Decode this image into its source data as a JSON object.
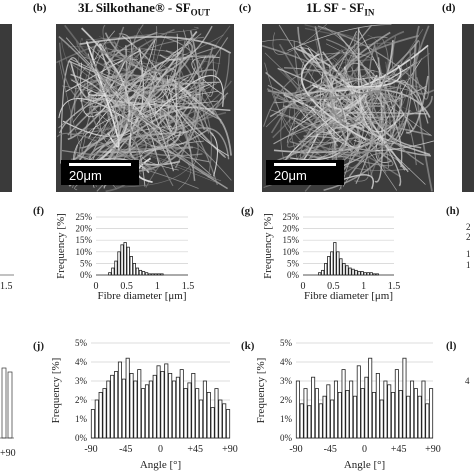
{
  "panels": {
    "b": {
      "letter": "(b)",
      "title_main": "3L Silkothane® - SF",
      "title_sub": "OUT",
      "scale": "20μm"
    },
    "c": {
      "letter": "(c)",
      "title_main": "1L SF - SF",
      "title_sub": "IN",
      "scale": "20μm"
    },
    "f": {
      "letter": "(f)"
    },
    "g": {
      "letter": "(g)"
    },
    "h": {
      "letter": "(h)"
    },
    "j": {
      "letter": "(j)"
    },
    "k": {
      "letter": "(k)"
    },
    "l": {
      "letter": "(l)"
    }
  },
  "left_edge_labels": {
    "diam_tick": "1.5",
    "angle_tick": "+90"
  },
  "chart_data": [
    {
      "id": "f",
      "type": "bar",
      "xlabel": "Fibre diameter [μm]",
      "ylabel": "Frequency [%]",
      "xlim": [
        0,
        1.5
      ],
      "ylim": [
        0,
        25
      ],
      "xticks": [
        "0",
        "0.5",
        "1",
        "1.5"
      ],
      "yticks": [
        "0%",
        "5%",
        "10%",
        "15%",
        "20%",
        "25%"
      ],
      "bin_start": 0.2,
      "bin_width": 0.05,
      "values": [
        1,
        3,
        6,
        10,
        13,
        14,
        12,
        8,
        5,
        3,
        2,
        1.5,
        1,
        0.5,
        0.5,
        0.5,
        0.5,
        0.5
      ]
    },
    {
      "id": "g",
      "type": "bar",
      "xlabel": "Fibre diameter [μm]",
      "ylabel": "Frequency [%]",
      "xlim": [
        0,
        1.5
      ],
      "ylim": [
        0,
        25
      ],
      "xticks": [
        "0",
        "0.5",
        "1",
        "1.5"
      ],
      "yticks": [
        "0%",
        "5%",
        "10%",
        "15%",
        "20%",
        "25%"
      ],
      "bin_start": 0.25,
      "bin_width": 0.05,
      "values": [
        1,
        2,
        5,
        8,
        10,
        14,
        10,
        7,
        5,
        4,
        3,
        2.5,
        2,
        1.5,
        1.5,
        1,
        1,
        1,
        0.5,
        0.5
      ]
    },
    {
      "id": "j",
      "type": "bar",
      "xlabel": "Angle [°]",
      "ylabel": "Frequency [%]",
      "xlim": [
        -90,
        90
      ],
      "ylim": [
        0,
        5
      ],
      "xticks": [
        "-90",
        "-45",
        "0",
        "+45",
        "+90"
      ],
      "yticks": [
        "0%",
        "1%",
        "2%",
        "3%",
        "4%",
        "5%"
      ],
      "bin_start": -90,
      "bin_width": 5,
      "values": [
        1.5,
        2.0,
        2.4,
        2.6,
        3.0,
        3.3,
        3.5,
        4.0,
        3.1,
        4.2,
        3.4,
        3.0,
        3.6,
        2.6,
        2.8,
        3.0,
        3.3,
        3.8,
        3.5,
        3.9,
        3.4,
        3.0,
        3.2,
        3.6,
        2.6,
        2.9,
        3.4,
        2.6,
        2.0,
        3.0,
        2.4,
        1.6,
        2.6,
        2.0,
        1.8,
        1.5
      ]
    },
    {
      "id": "k",
      "type": "bar",
      "xlabel": "Angle [°]",
      "ylabel": "Frequency [%]",
      "xlim": [
        -90,
        90
      ],
      "ylim": [
        0,
        5
      ],
      "xticks": [
        "-90",
        "-45",
        "0",
        "+45",
        "+90"
      ],
      "yticks": [
        "0%",
        "1%",
        "2%",
        "3%",
        "4%",
        "5%"
      ],
      "bin_start": -90,
      "bin_width": 5,
      "values": [
        3.0,
        1.8,
        2.6,
        1.7,
        3.2,
        2.6,
        1.8,
        2.2,
        2.8,
        2.0,
        3.0,
        2.4,
        3.6,
        2.5,
        3.0,
        2.2,
        3.8,
        2.6,
        3.2,
        4.2,
        2.4,
        3.4,
        2.0,
        3.0,
        2.8,
        2.4,
        3.6,
        2.5,
        4.2,
        2.2,
        3.0,
        2.6,
        2.2,
        3.0,
        1.8,
        2.6
      ]
    }
  ],
  "clipped": {
    "h_yticks": [
      "2",
      "2",
      "1",
      "1"
    ]
  }
}
